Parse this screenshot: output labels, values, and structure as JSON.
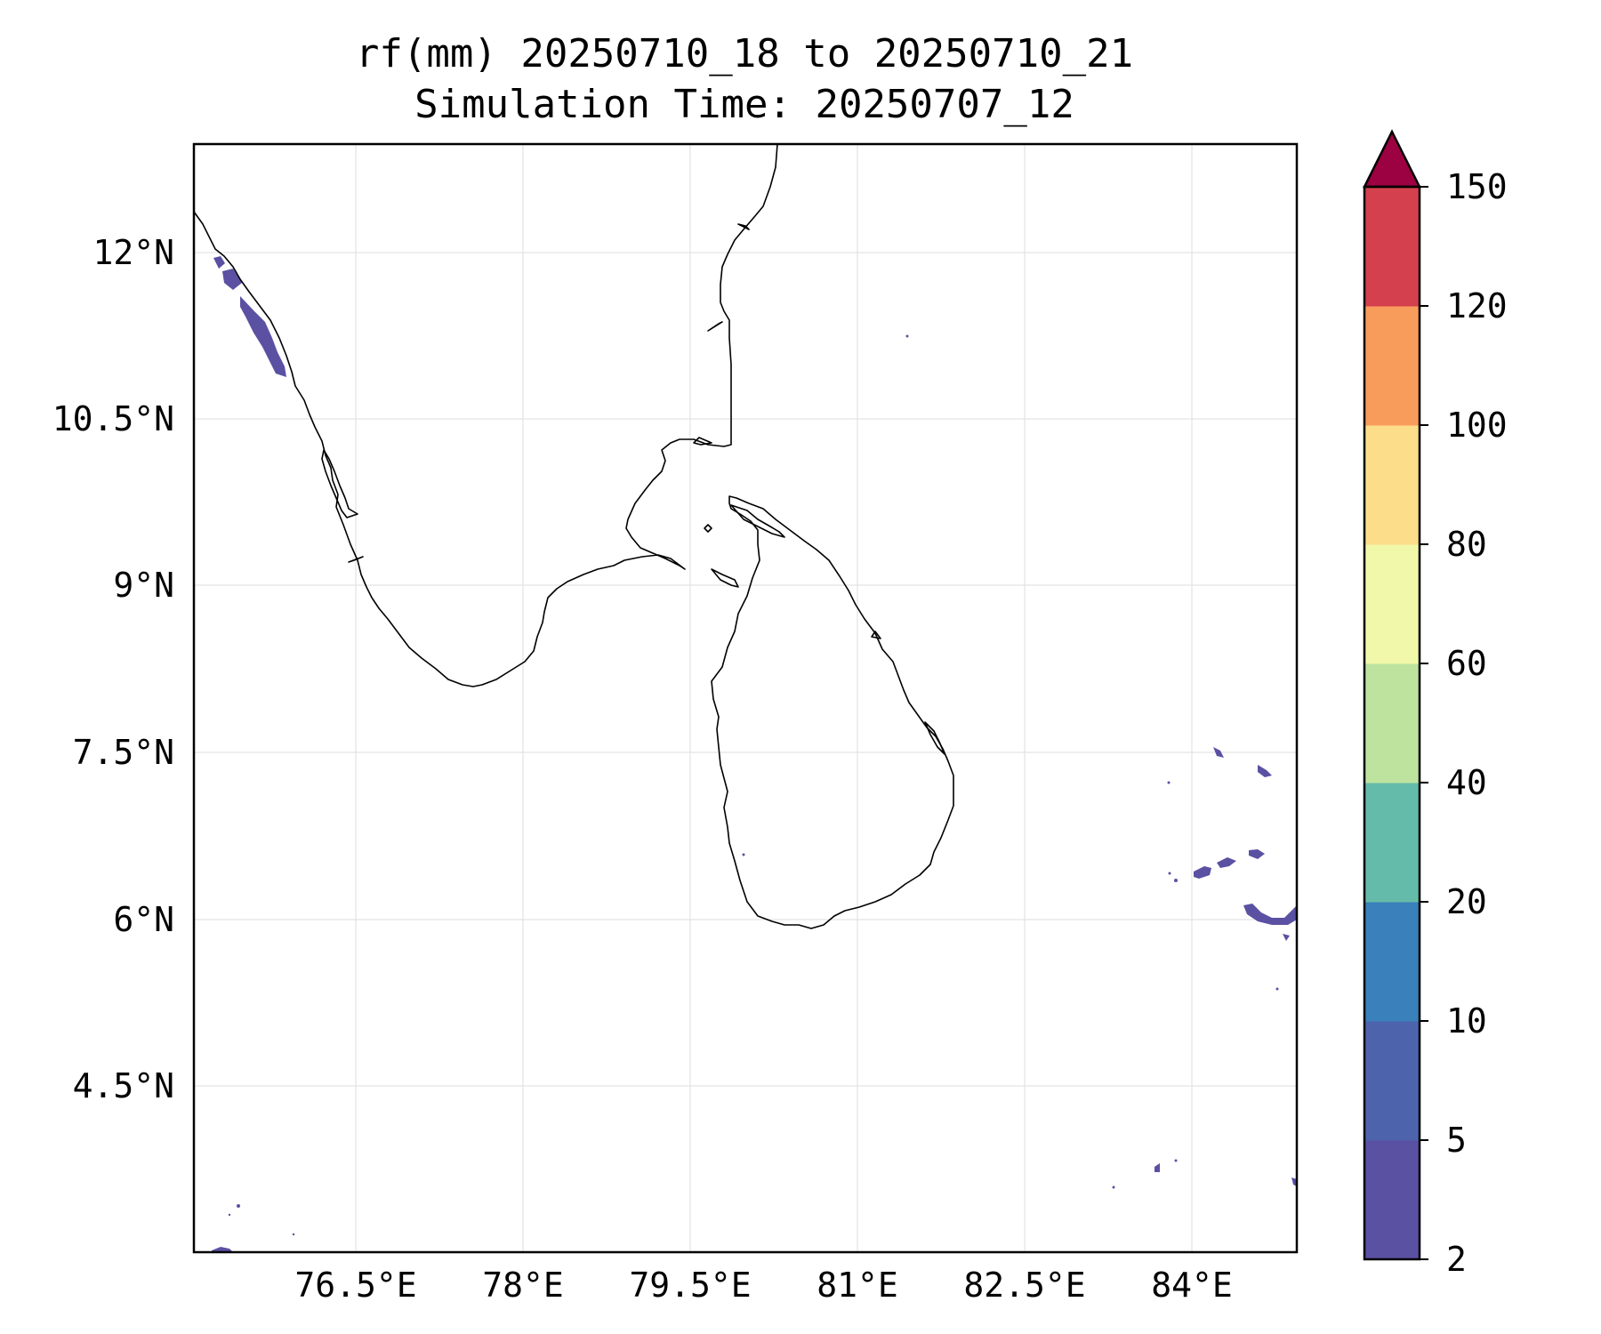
{
  "chart_data": {
    "type": "map",
    "title_line1": "rf(mm) 20250710_18 to 20250710_21",
    "title_line2": "Simulation Time: 20250707_12",
    "x_ticks": [
      "76.5°E",
      "78°E",
      "79.5°E",
      "81°E",
      "82.5°E",
      "84°E"
    ],
    "x_tick_values": [
      76.5,
      78,
      79.5,
      81,
      82.5,
      84
    ],
    "y_ticks": [
      "12°N",
      "10.5°N",
      "9°N",
      "7.5°N",
      "6°N",
      "4.5°N"
    ],
    "y_tick_values": [
      12,
      10.5,
      9,
      7.5,
      6,
      4.5
    ],
    "xlim": [
      75.05,
      84.95
    ],
    "ylim": [
      3.05,
      12.98
    ],
    "grid": true,
    "colorbar": {
      "ticks": [
        "2",
        "5",
        "10",
        "20",
        "40",
        "60",
        "80",
        "100",
        "120",
        "150"
      ],
      "colors": [
        "#5a51a3",
        "#4d64ad",
        "#3a80bb",
        "#65bba9",
        "#bde39f",
        "#f2f8aa",
        "#fbdd8a",
        "#f89c5c",
        "#d5404e"
      ],
      "extend_color": "#9c0142",
      "extend": "max"
    }
  }
}
